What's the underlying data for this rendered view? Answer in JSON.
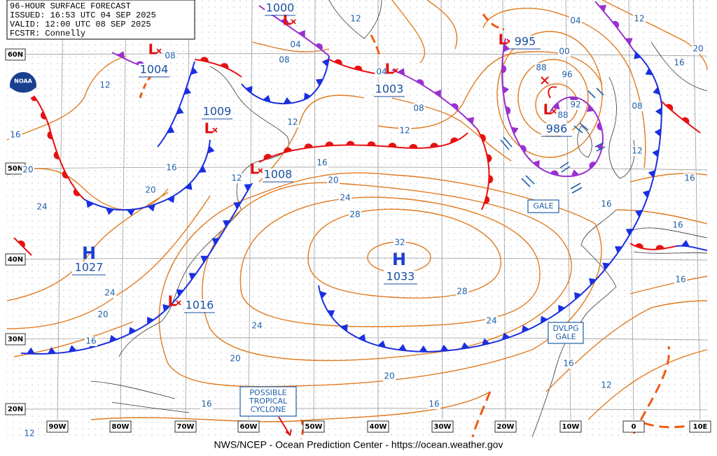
{
  "header": {
    "title": "96-HOUR SURFACE FORECAST",
    "issued": "ISSUED: 16:53 UTC 04 SEP 2025",
    "valid": "VALID:  12:00 UTC 08 SEP 2025",
    "forecaster": "FCSTR:  Connelly"
  },
  "logo": "NOAA",
  "footer": "NWS/NCEP - Ocean Prediction Center - https://ocean.weather.gov",
  "latitudes": [
    "60N",
    "50N",
    "40N",
    "30N",
    "20N"
  ],
  "longitudes": [
    "90W",
    "80W",
    "70W",
    "60W",
    "50W",
    "40W",
    "30W",
    "20W",
    "10W",
    "0",
    "10E"
  ],
  "highs": [
    {
      "symbol": "H",
      "pressure": "1027"
    },
    {
      "symbol": "H",
      "pressure": "1033"
    }
  ],
  "lows": [
    {
      "symbol": "L",
      "pressure": "1000"
    },
    {
      "symbol": "L",
      "pressure": "1004"
    },
    {
      "symbol": "L",
      "pressure": "995"
    },
    {
      "symbol": "L",
      "pressure": "1009"
    },
    {
      "symbol": "L",
      "pressure": "1003"
    },
    {
      "symbol": "L",
      "pressure": "1008"
    },
    {
      "symbol": "L",
      "pressure": "1016"
    },
    {
      "symbol": "L",
      "pressure": "986"
    }
  ],
  "warnings": [
    {
      "lines": [
        "GALE"
      ]
    },
    {
      "lines": [
        "DVLPG",
        "GALE"
      ]
    },
    {
      "lines": [
        "POSSIBLE",
        "TROPICAL",
        "CYCLONE"
      ]
    }
  ],
  "isobar_labels": [
    "12",
    "04",
    "08",
    "08",
    "12",
    "16",
    "20",
    "24",
    "20",
    "16",
    "12",
    "12",
    "16",
    "20",
    "24",
    "28",
    "32",
    "28",
    "24",
    "24",
    "20",
    "24",
    "16",
    "20",
    "20",
    "16",
    "16",
    "12",
    "08",
    "12",
    "04",
    "00",
    "96",
    "92",
    "88",
    "08",
    "12",
    "12",
    "20",
    "16",
    "16",
    "16",
    "16",
    "16",
    "16",
    "12",
    "04",
    "88"
  ]
}
